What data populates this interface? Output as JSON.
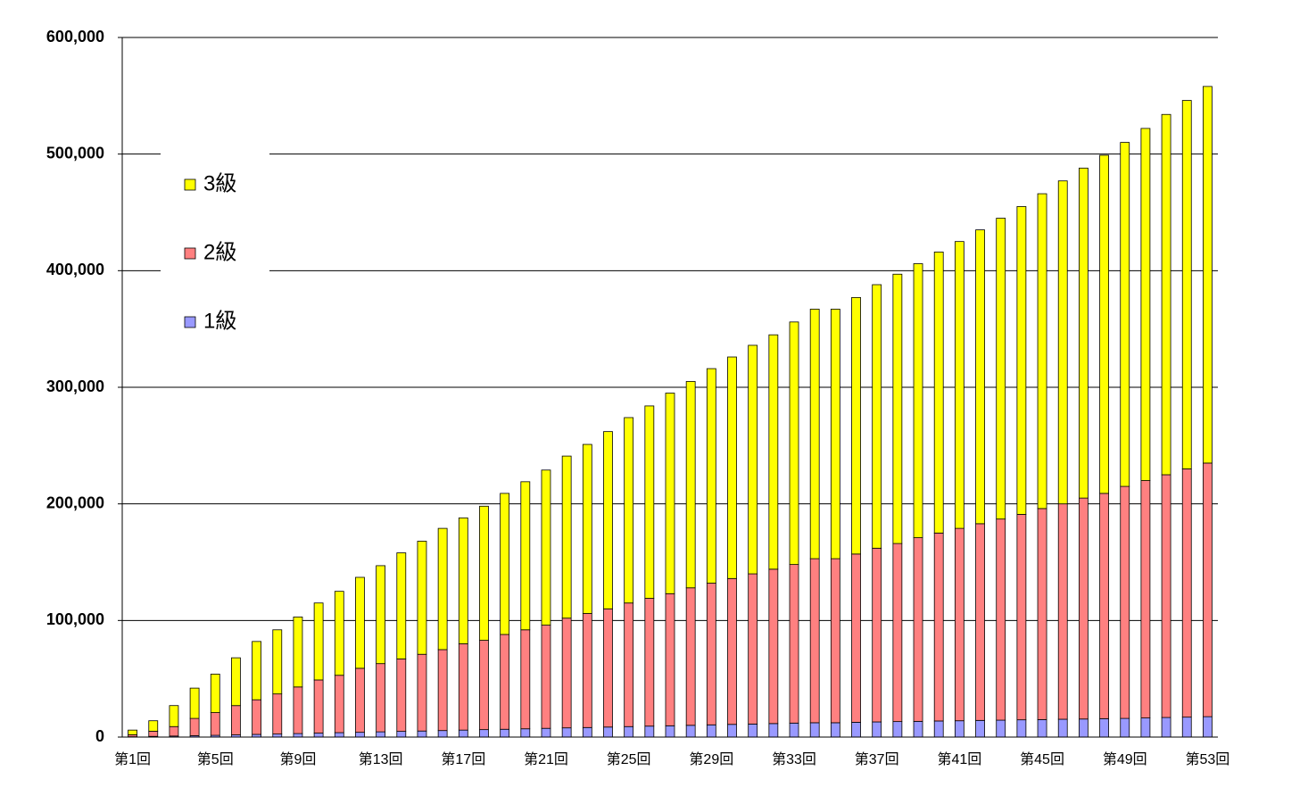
{
  "chart_data": {
    "type": "stacked-bar",
    "categories": [
      "第1回",
      null,
      null,
      null,
      "第5回",
      null,
      null,
      null,
      "第9回",
      null,
      null,
      null,
      "第13回",
      null,
      null,
      null,
      "第17回",
      null,
      null,
      null,
      "第21回",
      null,
      null,
      null,
      "第25回",
      null,
      null,
      null,
      "第29回",
      null,
      null,
      null,
      "第33回",
      null,
      null,
      null,
      "第37回",
      null,
      null,
      null,
      "第41回",
      null,
      null,
      null,
      "第45回",
      null,
      null,
      null,
      "第49回",
      null,
      null,
      null,
      "第53回"
    ],
    "series": [
      {
        "name": "1級",
        "color": "#9999ff",
        "values": [
          300,
          600,
          900,
          1200,
          1500,
          1900,
          2300,
          2600,
          3000,
          3400,
          3800,
          4100,
          4500,
          4900,
          5200,
          5600,
          6000,
          6400,
          6700,
          7100,
          7500,
          7900,
          8200,
          8600,
          9000,
          9400,
          9700,
          10100,
          10500,
          10900,
          11200,
          11600,
          12000,
          12300,
          12300,
          12700,
          13000,
          13300,
          13500,
          13800,
          14000,
          14300,
          14500,
          14800,
          15000,
          15300,
          15500,
          15800,
          16000,
          16400,
          16800,
          17100,
          17500
        ]
      },
      {
        "name": "2級",
        "color": "#ff8080",
        "values": [
          1700,
          4400,
          8100,
          14800,
          19500,
          25100,
          29700,
          34400,
          40000,
          45600,
          49200,
          54900,
          58500,
          62100,
          65800,
          69400,
          74000,
          76600,
          81300,
          84900,
          88500,
          94100,
          97800,
          101400,
          106000,
          109600,
          113300,
          117900,
          121500,
          125100,
          128800,
          132400,
          136000,
          140700,
          140700,
          144300,
          149000,
          152700,
          157500,
          161200,
          165000,
          168700,
          172500,
          176200,
          181000,
          184700,
          189500,
          193200,
          199000,
          203600,
          208200,
          212900,
          217500
        ]
      },
      {
        "name": "3級",
        "color": "#ffff00",
        "values": [
          4000,
          9000,
          18000,
          26000,
          33000,
          41000,
          50000,
          55000,
          60000,
          66000,
          72000,
          78000,
          84000,
          91000,
          97000,
          104000,
          108000,
          115000,
          121000,
          127000,
          133000,
          139000,
          145000,
          152000,
          159000,
          165000,
          172000,
          177000,
          184000,
          190000,
          196000,
          201000,
          208000,
          214000,
          214000,
          220000,
          226000,
          231000,
          235000,
          241000,
          246000,
          252000,
          258000,
          264000,
          270000,
          277000,
          283000,
          290000,
          295000,
          302000,
          309000,
          316000,
          323000
        ]
      }
    ],
    "ylim": [
      0,
      600000
    ],
    "yticks": [
      0,
      {
        "value": 100000,
        "label": "100,000"
      },
      {
        "value": 200000,
        "label": "200,000"
      },
      {
        "value": 300000,
        "label": "300,000"
      },
      {
        "value": 400000,
        "label": "400,000"
      },
      {
        "value": 500000,
        "label": "500,000"
      },
      {
        "value": 600000,
        "label": "600,000"
      }
    ],
    "grid": true,
    "legend": "left"
  }
}
